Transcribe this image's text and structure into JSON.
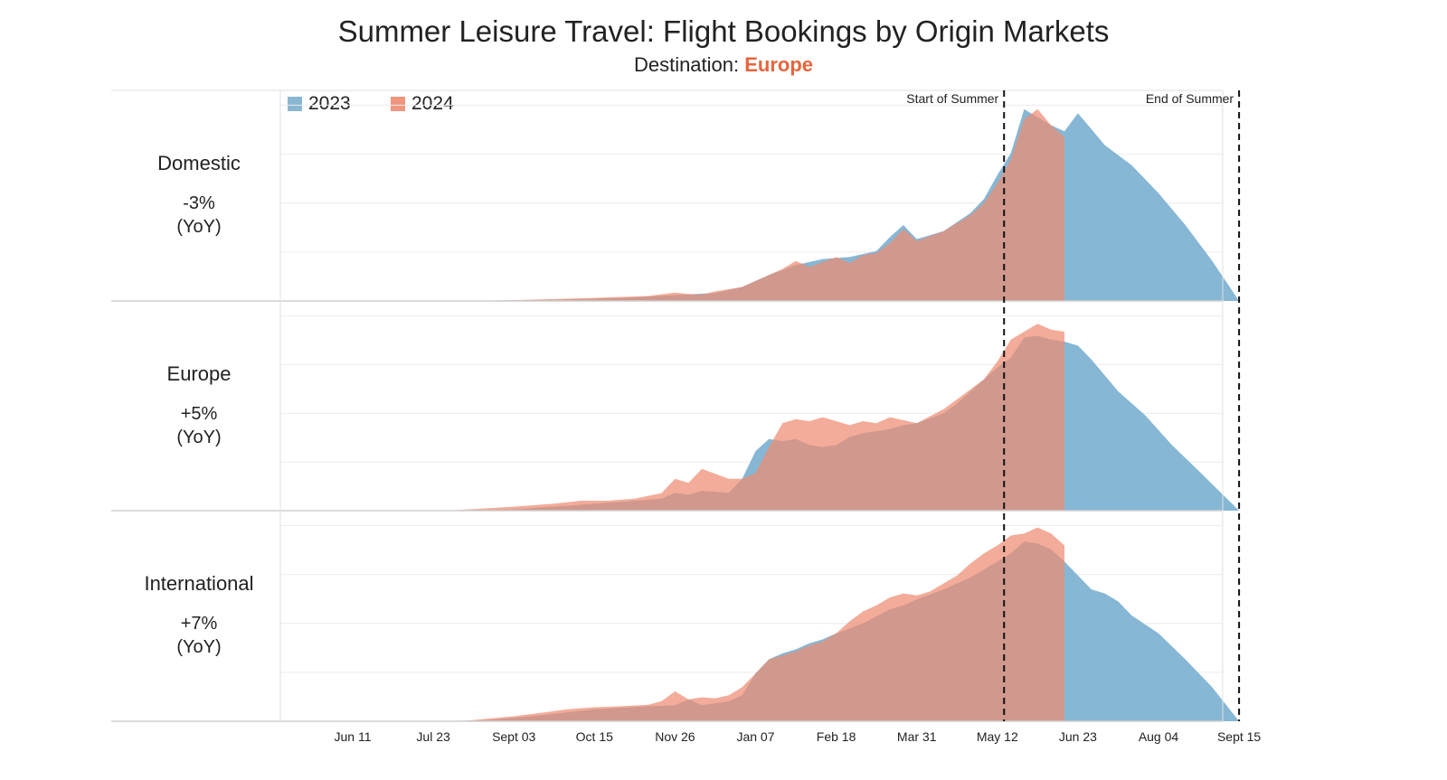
{
  "title": "Summer Leisure Travel: Flight Bookings by Origin Markets",
  "subtitle_prefix": "Destination: ",
  "subtitle_destination": "Europe",
  "colors": {
    "y2023": "#7fb3d3",
    "y2024": "#ef8c72",
    "overlap": "#b87f7b",
    "destination": "#e8643c"
  },
  "legend": [
    {
      "label": "2023",
      "color": "#89b7d2"
    },
    {
      "label": "2024",
      "color": "#f0957e"
    }
  ],
  "markers": [
    {
      "label": "Start of Summer",
      "week": 48.5
    },
    {
      "label": "End of Summer",
      "week": 66
    }
  ],
  "chart_data": {
    "type": "area",
    "x_unit": "weeks since Jun 11",
    "x_ticks": [
      {
        "label": "Jun 11",
        "week": 0
      },
      {
        "label": "Jul 23",
        "week": 6
      },
      {
        "label": "Sept 03",
        "week": 12
      },
      {
        "label": "Oct 15",
        "week": 18
      },
      {
        "label": "Nov 26",
        "week": 24
      },
      {
        "label": "Jan 07",
        "week": 30
      },
      {
        "label": "Feb 18",
        "week": 36
      },
      {
        "label": "Mar 31",
        "week": 42
      },
      {
        "label": "May 12",
        "week": 48
      },
      {
        "label": "Jun 23",
        "week": 54
      },
      {
        "label": "Aug 04",
        "week": 60
      },
      {
        "label": "Sept 15",
        "week": 66
      }
    ],
    "xlim": [
      -5,
      67
    ],
    "ylim": [
      0,
      100
    ],
    "panels": [
      {
        "name": "Domestic",
        "yoy": "-3%",
        "yoy_note": "(YoY)",
        "series": [
          {
            "name": "2023",
            "points": [
              [
                6,
                0
              ],
              [
                15,
                0.6
              ],
              [
                20,
                1.5
              ],
              [
                24,
                3
              ],
              [
                27,
                4
              ],
              [
                29,
                7
              ],
              [
                31,
                13
              ],
              [
                33,
                18
              ],
              [
                35,
                21
              ],
              [
                37,
                22
              ],
              [
                39,
                25
              ],
              [
                40,
                32
              ],
              [
                41,
                38
              ],
              [
                42,
                31
              ],
              [
                44,
                35
              ],
              [
                46,
                44
              ],
              [
                47,
                51
              ],
              [
                48,
                63
              ],
              [
                49,
                74
              ],
              [
                50,
                96
              ],
              [
                51,
                92
              ],
              [
                52,
                88
              ],
              [
                53,
                85
              ],
              [
                54,
                94
              ],
              [
                55,
                86
              ],
              [
                56,
                78
              ],
              [
                58,
                68
              ],
              [
                60,
                54
              ],
              [
                62,
                38
              ],
              [
                64,
                20
              ],
              [
                66,
                0
              ]
            ]
          },
          {
            "name": "2024",
            "points": [
              [
                10,
                0
              ],
              [
                14,
                0.8
              ],
              [
                17,
                1.3
              ],
              [
                19,
                1.8
              ],
              [
                22,
                2.5
              ],
              [
                24,
                4.2
              ],
              [
                25,
                3.5
              ],
              [
                26,
                3.2
              ],
              [
                27,
                4.8
              ],
              [
                29,
                7
              ],
              [
                30,
                10
              ],
              [
                32,
                16
              ],
              [
                33,
                20
              ],
              [
                34,
                17
              ],
              [
                36,
                22
              ],
              [
                37,
                19
              ],
              [
                38,
                23
              ],
              [
                39,
                24
              ],
              [
                40,
                29
              ],
              [
                41,
                36
              ],
              [
                42,
                30
              ],
              [
                44,
                35
              ],
              [
                46,
                43
              ],
              [
                47,
                49
              ],
              [
                48,
                59
              ],
              [
                49,
                71
              ],
              [
                50,
                91
              ],
              [
                51,
                96
              ],
              [
                52,
                88
              ],
              [
                53,
                82
              ]
            ]
          }
        ]
      },
      {
        "name": "Europe",
        "yoy": "+5%",
        "yoy_note": "(YoY)",
        "series": [
          {
            "name": "2023",
            "points": [
              [
                6,
                0
              ],
              [
                12,
                0.7
              ],
              [
                16,
                2.5
              ],
              [
                20,
                4.5
              ],
              [
                23,
                6
              ],
              [
                24,
                9
              ],
              [
                25,
                8
              ],
              [
                26,
                10
              ],
              [
                28,
                9
              ],
              [
                29,
                16
              ],
              [
                30,
                30
              ],
              [
                31,
                36
              ],
              [
                32,
                35
              ],
              [
                33,
                36
              ],
              [
                34,
                33
              ],
              [
                35,
                32
              ],
              [
                36,
                33
              ],
              [
                37,
                37
              ],
              [
                38,
                39
              ],
              [
                40,
                41
              ],
              [
                41,
                43
              ],
              [
                42,
                44
              ],
              [
                44,
                49
              ],
              [
                45,
                54
              ],
              [
                46,
                60
              ],
              [
                47,
                66
              ],
              [
                48,
                72
              ],
              [
                49,
                77
              ],
              [
                50,
                87
              ],
              [
                51,
                88
              ],
              [
                52,
                86
              ],
              [
                53,
                85
              ],
              [
                54,
                83
              ],
              [
                55,
                76
              ],
              [
                56,
                68
              ],
              [
                57,
                60
              ],
              [
                59,
                48
              ],
              [
                61,
                33
              ],
              [
                63,
                20
              ],
              [
                66,
                0
              ]
            ]
          },
          {
            "name": "2024",
            "points": [
              [
                7,
                0
              ],
              [
                9,
                0.8
              ],
              [
                12,
                2
              ],
              [
                15,
                3.5
              ],
              [
                17,
                5
              ],
              [
                19,
                5
              ],
              [
                21,
                6
              ],
              [
                23,
                8.8
              ],
              [
                24,
                16
              ],
              [
                25,
                14
              ],
              [
                26,
                21
              ],
              [
                28,
                16
              ],
              [
                29,
                16
              ],
              [
                30,
                19
              ],
              [
                31,
                32
              ],
              [
                32,
                44
              ],
              [
                33,
                46
              ],
              [
                34,
                45
              ],
              [
                35,
                47
              ],
              [
                36,
                45
              ],
              [
                37,
                43
              ],
              [
                38,
                45
              ],
              [
                39,
                44
              ],
              [
                40,
                47
              ],
              [
                42,
                44
              ],
              [
                44,
                51
              ],
              [
                45,
                56
              ],
              [
                46,
                61
              ],
              [
                47,
                66
              ],
              [
                48,
                75
              ],
              [
                49,
                86
              ],
              [
                50,
                90
              ],
              [
                51,
                94
              ],
              [
                52,
                91
              ],
              [
                53,
                90
              ]
            ]
          }
        ]
      },
      {
        "name": "International",
        "yoy": "+7%",
        "yoy_note": "(YoY)",
        "series": [
          {
            "name": "2023",
            "points": [
              [
                6,
                0
              ],
              [
                10,
                0.6
              ],
              [
                14,
                3
              ],
              [
                18,
                6
              ],
              [
                22,
                7.5
              ],
              [
                24,
                8
              ],
              [
                25,
                11
              ],
              [
                26,
                8
              ],
              [
                27,
                9
              ],
              [
                28,
                10
              ],
              [
                29,
                13
              ],
              [
                30,
                24
              ],
              [
                31,
                31
              ],
              [
                32,
                34
              ],
              [
                33,
                36
              ],
              [
                34,
                39
              ],
              [
                35,
                41
              ],
              [
                36,
                44
              ],
              [
                38,
                49
              ],
              [
                40,
                56
              ],
              [
                41,
                58
              ],
              [
                42,
                61
              ],
              [
                44,
                66
              ],
              [
                46,
                72
              ],
              [
                48,
                80
              ],
              [
                49,
                84
              ],
              [
                50,
                90
              ],
              [
                51,
                89
              ],
              [
                52,
                86
              ],
              [
                53,
                80
              ],
              [
                54,
                73
              ],
              [
                55,
                66
              ],
              [
                56,
                64
              ],
              [
                57,
                60
              ],
              [
                58,
                53
              ],
              [
                60,
                44
              ],
              [
                62,
                31
              ],
              [
                64,
                17
              ],
              [
                66,
                0
              ]
            ]
          },
          {
            "name": "2024",
            "points": [
              [
                8,
                0
              ],
              [
                10,
                1.2
              ],
              [
                12,
                2.5
              ],
              [
                14,
                4.2
              ],
              [
                16,
                6
              ],
              [
                18,
                7
              ],
              [
                20,
                7.5
              ],
              [
                22,
                8.3
              ],
              [
                23,
                10
              ],
              [
                24,
                15
              ],
              [
                25,
                11
              ],
              [
                26,
                12
              ],
              [
                27,
                11.5
              ],
              [
                28,
                13
              ],
              [
                29,
                17
              ],
              [
                30,
                24
              ],
              [
                31,
                31
              ],
              [
                32,
                33
              ],
              [
                33,
                35
              ],
              [
                34,
                38
              ],
              [
                35,
                40
              ],
              [
                36,
                44
              ],
              [
                37,
                50
              ],
              [
                38,
                55
              ],
              [
                39,
                58
              ],
              [
                40,
                62
              ],
              [
                41,
                64
              ],
              [
                42,
                63
              ],
              [
                43,
                65
              ],
              [
                44,
                69
              ],
              [
                45,
                73
              ],
              [
                46,
                79
              ],
              [
                47,
                84
              ],
              [
                48,
                88
              ],
              [
                49,
                93
              ],
              [
                50,
                94
              ],
              [
                51,
                97
              ],
              [
                52,
                94
              ],
              [
                53,
                88
              ]
            ]
          }
        ]
      }
    ]
  }
}
